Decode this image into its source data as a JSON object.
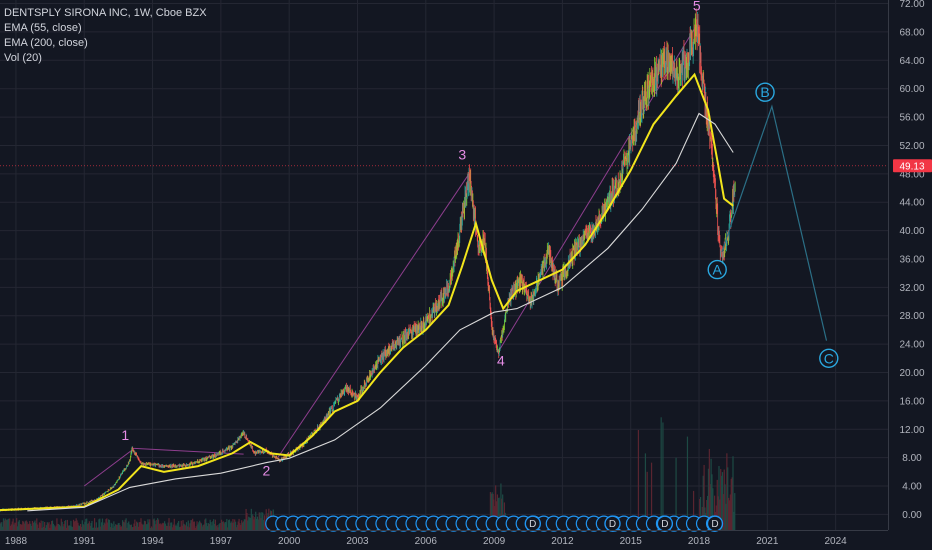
{
  "legend": {
    "title": "DENTSPLY SIRONA INC, 1W, Cboe BZX",
    "ema55": "EMA (55, close)",
    "ema200": "EMA (200, close)",
    "vol": "Vol (20)"
  },
  "last_price_label": "49.13",
  "colors": {
    "background": "#131722",
    "grid": "#242733",
    "up": "#26a69a",
    "up_bright": "#8bd12e",
    "down": "#ef5350",
    "ema55": "#f2e51c",
    "ema200": "#d9d9d9",
    "wave_label": "#e58ce5",
    "abc": "#2aa8e0",
    "projection": "#2b6f86",
    "channel": "#8e3e8e",
    "dividend": "#2196f3",
    "price_tag": "#f23645"
  },
  "chart_data": {
    "type": "candlestick",
    "symbol": "DENTSPLY SIRONA INC",
    "interval": "1W",
    "exchange": "Cboe BZX",
    "xlim": [
      1987.3,
      2026.3
    ],
    "ylim": [
      -2.2,
      72.5
    ],
    "x_ticks": [
      "1988",
      "1991",
      "1994",
      "1997",
      "2000",
      "2003",
      "2006",
      "2009",
      "2012",
      "2015",
      "2018",
      "2021",
      "2024"
    ],
    "y_ticks": [
      "0.00",
      "4.00",
      "8.00",
      "12.00",
      "16.00",
      "20.00",
      "24.00",
      "28.00",
      "32.00",
      "36.00",
      "40.00",
      "44.00",
      "48.00",
      "52.00",
      "56.00",
      "60.00",
      "64.00",
      "68.00",
      "72.00"
    ],
    "last_price": 49.13,
    "price_path": [
      [
        1987.3,
        0.6
      ],
      [
        1990.5,
        1.1
      ],
      [
        1991.5,
        2.0
      ],
      [
        1992.3,
        4.0
      ],
      [
        1993.0,
        7.5
      ],
      [
        1993.1,
        9.3
      ],
      [
        1993.5,
        7.2
      ],
      [
        1994.5,
        6.8
      ],
      [
        1995.5,
        6.9
      ],
      [
        1996.5,
        8.0
      ],
      [
        1997.5,
        9.5
      ],
      [
        1998.0,
        11.5
      ],
      [
        1998.5,
        8.6
      ],
      [
        1999.0,
        9.0
      ],
      [
        1999.6,
        7.6
      ],
      [
        2000.5,
        9.5
      ],
      [
        2001.5,
        13.0
      ],
      [
        2002.5,
        18.0
      ],
      [
        2003.0,
        16.5
      ],
      [
        2004.0,
        22.0
      ],
      [
        2005.0,
        25.0
      ],
      [
        2006.0,
        27.0
      ],
      [
        2007.0,
        32.0
      ],
      [
        2007.5,
        40.0
      ],
      [
        2007.9,
        47.7
      ],
      [
        2008.3,
        38.0
      ],
      [
        2008.6,
        38.5
      ],
      [
        2008.9,
        26.0
      ],
      [
        2009.2,
        22.8
      ],
      [
        2009.6,
        30.0
      ],
      [
        2010.2,
        33.0
      ],
      [
        2010.6,
        29.5
      ],
      [
        2011.4,
        37.0
      ],
      [
        2011.8,
        32.0
      ],
      [
        2012.6,
        37.5
      ],
      [
        2013.5,
        41.0
      ],
      [
        2014.5,
        47.0
      ],
      [
        2015.0,
        52.0
      ],
      [
        2015.5,
        58.0
      ],
      [
        2016.0,
        61.0
      ],
      [
        2016.5,
        64.0
      ],
      [
        2017.0,
        62.0
      ],
      [
        2017.5,
        64.5
      ],
      [
        2017.9,
        69.0
      ],
      [
        2018.3,
        58.0
      ],
      [
        2018.6,
        50.0
      ],
      [
        2018.9,
        38.0
      ],
      [
        2019.0,
        36.0
      ],
      [
        2019.3,
        40.0
      ],
      [
        2019.6,
        47.0
      ]
    ],
    "series": [
      {
        "name": "EMA (55, close)",
        "points": [
          [
            1987.3,
            0.6
          ],
          [
            1991.0,
            1.1
          ],
          [
            1992.5,
            3.5
          ],
          [
            1993.5,
            6.8
          ],
          [
            1994.5,
            6.0
          ],
          [
            1996.0,
            6.8
          ],
          [
            1997.5,
            8.6
          ],
          [
            1998.3,
            10.2
          ],
          [
            1999.2,
            8.6
          ],
          [
            2000.0,
            8.3
          ],
          [
            2001.0,
            11.0
          ],
          [
            2002.0,
            14.5
          ],
          [
            2003.0,
            16.0
          ],
          [
            2004.0,
            20.0
          ],
          [
            2005.0,
            23.5
          ],
          [
            2006.0,
            26.0
          ],
          [
            2007.0,
            29.5
          ],
          [
            2007.6,
            35.0
          ],
          [
            2008.2,
            41.0
          ],
          [
            2008.9,
            33.0
          ],
          [
            2009.4,
            29.0
          ],
          [
            2010.0,
            31.5
          ],
          [
            2011.0,
            33.0
          ],
          [
            2012.0,
            34.5
          ],
          [
            2013.0,
            38.0
          ],
          [
            2014.0,
            43.0
          ],
          [
            2015.0,
            48.5
          ],
          [
            2016.0,
            55.0
          ],
          [
            2017.0,
            59.0
          ],
          [
            2017.8,
            62.0
          ],
          [
            2018.4,
            57.0
          ],
          [
            2018.8,
            50.0
          ],
          [
            2019.1,
            44.5
          ],
          [
            2019.5,
            43.5
          ]
        ]
      },
      {
        "name": "EMA (200, close)",
        "points": [
          [
            1988.5,
            0.5
          ],
          [
            1991.0,
            1.0
          ],
          [
            1993.0,
            3.8
          ],
          [
            1995.0,
            5.0
          ],
          [
            1997.0,
            5.8
          ],
          [
            1999.0,
            7.3
          ],
          [
            2000.0,
            7.9
          ],
          [
            2002.0,
            10.5
          ],
          [
            2004.0,
            15.0
          ],
          [
            2006.0,
            21.0
          ],
          [
            2007.5,
            26.0
          ],
          [
            2009.0,
            28.5
          ],
          [
            2010.0,
            29.0
          ],
          [
            2012.0,
            32.0
          ],
          [
            2014.0,
            37.5
          ],
          [
            2015.5,
            43.0
          ],
          [
            2017.0,
            49.5
          ],
          [
            2018.0,
            56.5
          ],
          [
            2018.7,
            55.0
          ],
          [
            2019.5,
            51.0
          ]
        ]
      }
    ],
    "wave_labels": [
      {
        "text": "1",
        "x": 1992.8,
        "y": 10.5
      },
      {
        "text": "2",
        "x": 1999.0,
        "y": 5.5
      },
      {
        "text": "3",
        "x": 2007.6,
        "y": 50.0
      },
      {
        "text": "4",
        "x": 2009.3,
        "y": 21.0
      },
      {
        "text": "5",
        "x": 2017.9,
        "y": 71.0
      }
    ],
    "abc_points": [
      {
        "text": "A",
        "x": 2018.8,
        "y": 34.5
      },
      {
        "text": "B",
        "x": 2020.9,
        "y": 59.5
      },
      {
        "text": "C",
        "x": 2023.7,
        "y": 22.0
      }
    ],
    "projection": [
      [
        2019.0,
        37.0
      ],
      [
        2021.2,
        57.5
      ],
      [
        2023.6,
        24.5
      ]
    ],
    "channel_lines": [
      [
        [
          1991.0,
          4.0
        ],
        [
          1993.2,
          9.3
        ]
      ],
      [
        [
          1993.2,
          9.3
        ],
        [
          1998.0,
          8.5
        ]
      ],
      [
        [
          1999.5,
          8.0
        ],
        [
          2007.9,
          48.0
        ]
      ],
      [
        [
          2009.2,
          23.0
        ],
        [
          2017.9,
          69.0
        ]
      ]
    ],
    "dividend_markers": {
      "x_start": 1999.3,
      "x_end": 2018.9,
      "step": 0.44,
      "y": -1.3,
      "labeled": [
        {
          "text": "D",
          "x": 2010.7
        },
        {
          "text": "D",
          "x": 2014.2
        },
        {
          "text": "D",
          "x": 2016.5
        },
        {
          "text": "D",
          "x": 2018.7
        }
      ]
    }
  }
}
